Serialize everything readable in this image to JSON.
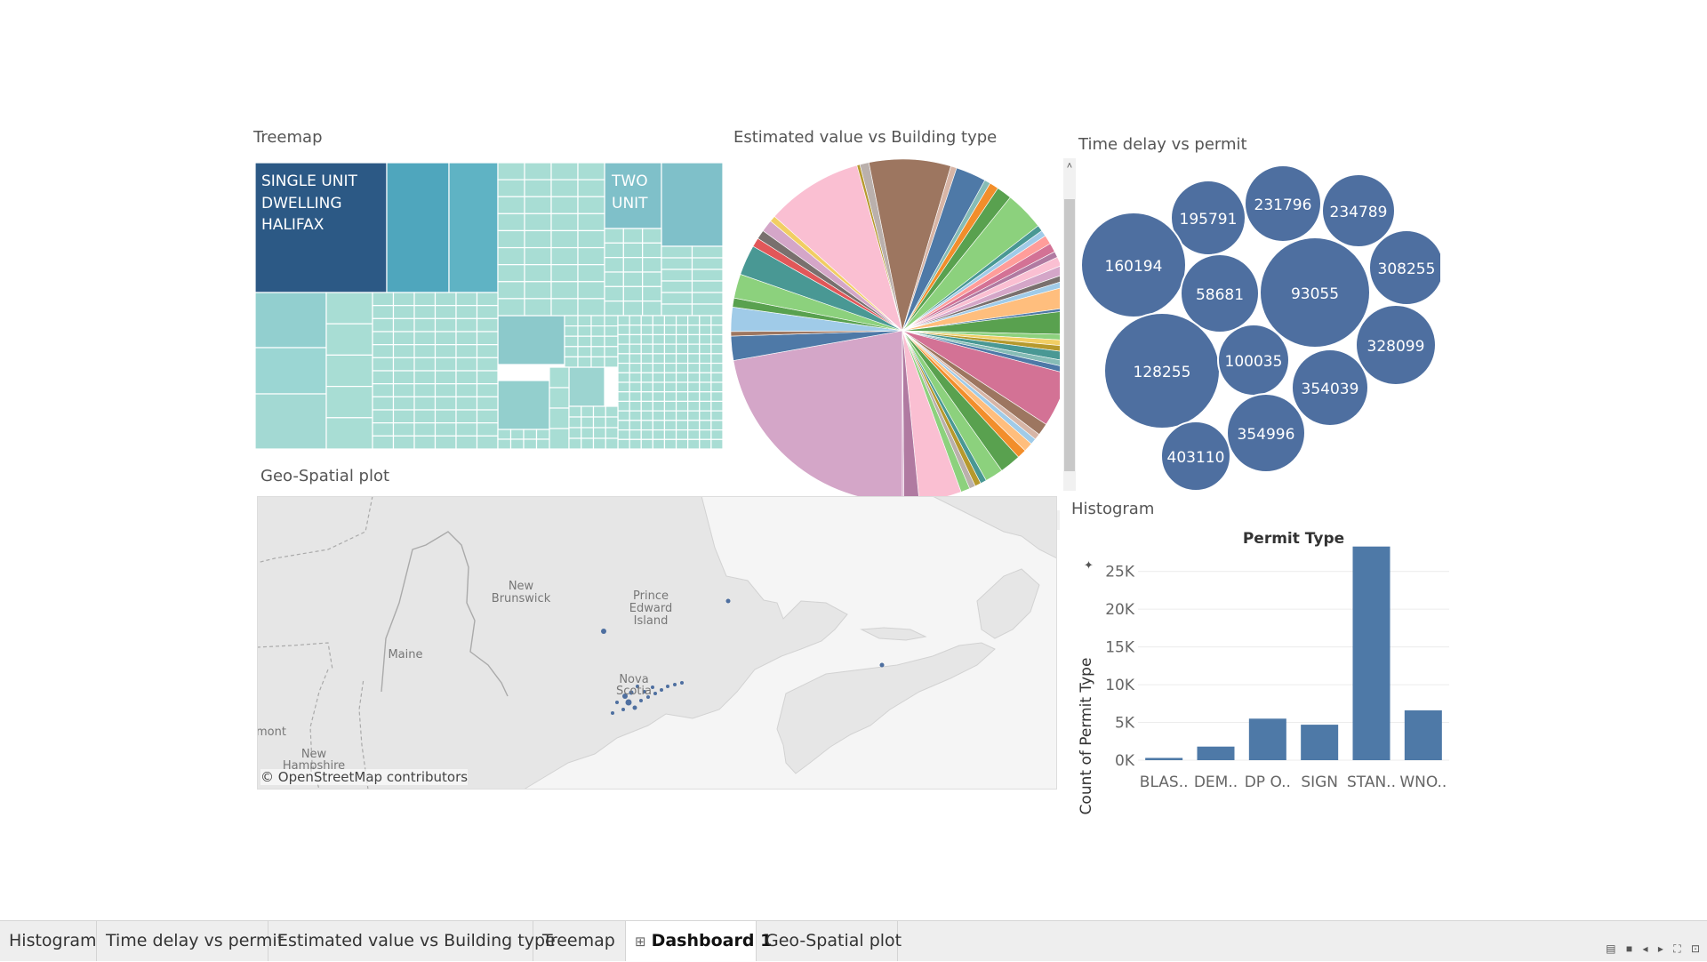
{
  "treemap": {
    "title": "Treemap",
    "labels": [
      [
        "SINGLE UNIT",
        "DWELLING",
        "HALIFAX"
      ],
      [
        "TWO",
        "UNIT"
      ]
    ]
  },
  "pie": {
    "title": "Estimated value vs Building type"
  },
  "bubbles": {
    "title": "Time delay vs permit",
    "items": [
      "195791",
      "231796",
      "234789",
      "160194",
      "58681",
      "93055",
      "308255",
      "128255",
      "100035",
      "354039",
      "328099",
      "403110",
      "354996"
    ]
  },
  "map": {
    "title": "Geo-Spatial plot",
    "attribution": "© OpenStreetMap contributors",
    "labels": [
      [
        "New",
        "Brunswick"
      ],
      [
        "Prince",
        "Edward",
        "Island"
      ],
      [
        "Maine"
      ],
      [
        "Nova",
        "Scotia"
      ],
      [
        "mont"
      ],
      [
        "New",
        "Hampshire"
      ]
    ]
  },
  "histogram": {
    "title": "Histogram",
    "chart_title": "Permit Type",
    "ylabel": "Count of Permit Type",
    "y_ticks": [
      "0K",
      "5K",
      "10K",
      "15K",
      "20K",
      "25K"
    ],
    "colors": {
      "bar": "#4e79a7"
    }
  },
  "chart_data": [
    {
      "type": "bar",
      "title": "Permit Type",
      "xlabel": "",
      "ylabel": "Count of Permit Type",
      "categories": [
        "BLAS..",
        "DEM..",
        "DP O..",
        "SIGN",
        "STAN..",
        "WNO.."
      ],
      "values": [
        300,
        1800,
        5500,
        4700,
        28300,
        6600
      ],
      "ylim": [
        0,
        28500
      ],
      "grid": true
    }
  ],
  "tabs": [
    {
      "label": "Histogram",
      "active": false
    },
    {
      "label": "Time delay vs permit",
      "active": false
    },
    {
      "label": "Estimated value vs Building type",
      "active": false
    },
    {
      "label": "Treemap",
      "active": false
    },
    {
      "label": "Dashboard 1",
      "active": true
    },
    {
      "label": "Geo-Spatial plot",
      "active": false
    }
  ]
}
